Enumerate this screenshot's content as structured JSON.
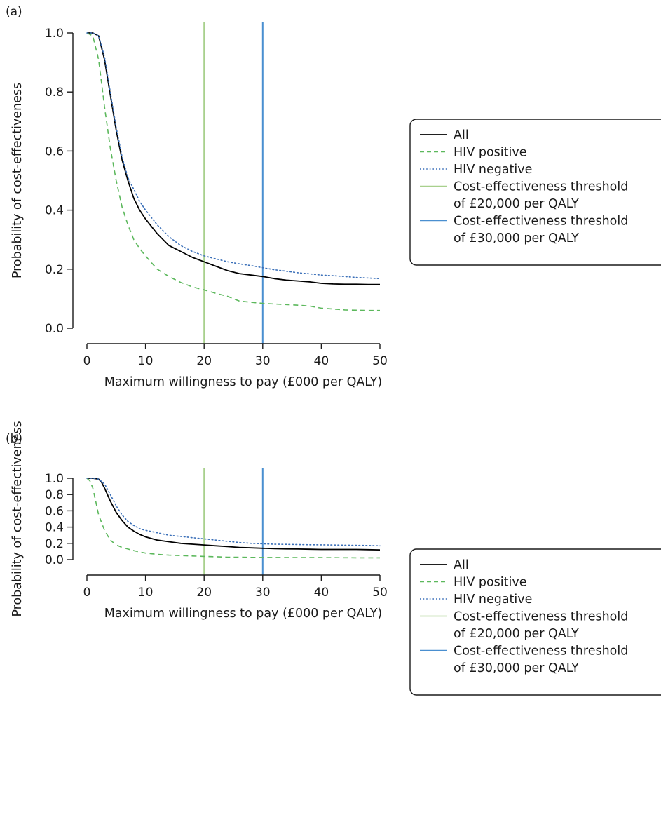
{
  "panels": [
    {
      "label": "(a)"
    },
    {
      "label": "(b)"
    }
  ],
  "colors": {
    "all": "#000000",
    "hiv_positive": "#5cb85c",
    "hiv_negative": "#3a6fb8",
    "threshold_20k": "#a8d08d",
    "threshold_30k": "#4a8fd0"
  },
  "chart_data": [
    {
      "type": "line",
      "panel": "(a)",
      "xlabel": "Maximum willingness to pay (£000 per QALY)",
      "ylabel": "Probability of cost-effectiveness",
      "xlim": [
        0,
        50
      ],
      "ylim": [
        0,
        1
      ],
      "xticks": [
        0,
        10,
        20,
        30,
        40,
        50
      ],
      "yticks": [
        "0.0",
        "0.2",
        "0.4",
        "0.6",
        "0.8",
        "1.0"
      ],
      "grid": false,
      "legend_position": "right",
      "legend": [
        {
          "key": "all",
          "label": "All",
          "style": "solid"
        },
        {
          "key": "hiv_positive",
          "label": "HIV positive",
          "style": "dashed"
        },
        {
          "key": "hiv_negative",
          "label": "HIV negative",
          "style": "dotted"
        },
        {
          "key": "threshold_20k",
          "label": "Cost-effectiveness threshold",
          "label2": "of £20,000 per QALY",
          "style": "solid"
        },
        {
          "key": "threshold_30k",
          "label": "Cost-effectiveness threshold",
          "label2": "of £30,000 per QALY",
          "style": "solid"
        }
      ],
      "vlines": [
        {
          "key": "threshold_20k",
          "x": 20
        },
        {
          "key": "threshold_30k",
          "x": 30
        }
      ],
      "series": [
        {
          "key": "all",
          "style": "solid",
          "x": [
            0,
            1,
            2,
            3,
            4,
            5,
            6,
            7,
            8,
            9,
            10,
            12,
            14,
            16,
            18,
            20,
            22,
            24,
            26,
            28,
            30,
            32,
            34,
            36,
            38,
            40,
            42,
            44,
            46,
            48,
            50
          ],
          "y": [
            1.0,
            1.0,
            0.99,
            0.91,
            0.79,
            0.67,
            0.57,
            0.5,
            0.44,
            0.4,
            0.37,
            0.32,
            0.28,
            0.26,
            0.24,
            0.225,
            0.21,
            0.195,
            0.185,
            0.18,
            0.175,
            0.168,
            0.163,
            0.16,
            0.157,
            0.152,
            0.15,
            0.149,
            0.149,
            0.148,
            0.148
          ]
        },
        {
          "key": "hiv_positive",
          "style": "dashed",
          "x": [
            0,
            1,
            2,
            3,
            4,
            5,
            6,
            7,
            8,
            9,
            10,
            12,
            14,
            16,
            18,
            20,
            22,
            24,
            26,
            28,
            30,
            32,
            34,
            36,
            38,
            40,
            42,
            44,
            46,
            48,
            50
          ],
          "y": [
            1.0,
            0.99,
            0.91,
            0.75,
            0.61,
            0.5,
            0.41,
            0.35,
            0.3,
            0.27,
            0.245,
            0.2,
            0.175,
            0.155,
            0.14,
            0.13,
            0.118,
            0.108,
            0.092,
            0.088,
            0.084,
            0.082,
            0.08,
            0.078,
            0.075,
            0.068,
            0.065,
            0.062,
            0.061,
            0.06,
            0.06
          ]
        },
        {
          "key": "hiv_negative",
          "style": "dotted",
          "x": [
            0,
            1,
            2,
            3,
            4,
            5,
            6,
            7,
            8,
            9,
            10,
            12,
            14,
            16,
            18,
            20,
            22,
            24,
            26,
            28,
            30,
            32,
            34,
            36,
            38,
            40,
            42,
            44,
            46,
            48,
            50
          ],
          "y": [
            1.0,
            1.0,
            0.99,
            0.92,
            0.8,
            0.68,
            0.58,
            0.51,
            0.47,
            0.43,
            0.4,
            0.35,
            0.31,
            0.28,
            0.26,
            0.245,
            0.235,
            0.225,
            0.218,
            0.212,
            0.205,
            0.198,
            0.193,
            0.188,
            0.184,
            0.18,
            0.178,
            0.175,
            0.172,
            0.17,
            0.168
          ]
        }
      ]
    },
    {
      "type": "line",
      "panel": "(b)",
      "xlabel": "Maximum willingness to pay (£000 per QALY)",
      "ylabel": "Probability of cost-effectiveness",
      "xlim": [
        0,
        50
      ],
      "ylim": [
        0,
        1
      ],
      "xticks": [
        0,
        10,
        20,
        30,
        40,
        50
      ],
      "yticks": [
        "0.0",
        "0.2",
        "0.4",
        "0.6",
        "0.8",
        "1.0"
      ],
      "grid": false,
      "legend_position": "right",
      "legend": [
        {
          "key": "all",
          "label": "All",
          "style": "solid"
        },
        {
          "key": "hiv_positive",
          "label": "HIV positive",
          "style": "dashed"
        },
        {
          "key": "hiv_negative",
          "label": "HIV negative",
          "style": "dotted"
        },
        {
          "key": "threshold_20k",
          "label": "Cost-effectiveness threshold",
          "label2": "of £20,000 per QALY",
          "style": "solid"
        },
        {
          "key": "threshold_30k",
          "label": "Cost-effectiveness threshold",
          "label2": "of £30,000 per QALY",
          "style": "solid"
        }
      ],
      "vlines": [
        {
          "key": "threshold_20k",
          "x": 20
        },
        {
          "key": "threshold_30k",
          "x": 30
        }
      ],
      "series": [
        {
          "key": "all",
          "style": "solid",
          "x": [
            0,
            1,
            2,
            2.5,
            3,
            4,
            5,
            6,
            7,
            8,
            9,
            10,
            12,
            14,
            16,
            18,
            20,
            22,
            24,
            26,
            28,
            30,
            32,
            34,
            36,
            38,
            40,
            42,
            44,
            46,
            48,
            50
          ],
          "y": [
            1.0,
            1.0,
            0.99,
            0.95,
            0.88,
            0.72,
            0.58,
            0.48,
            0.4,
            0.35,
            0.31,
            0.28,
            0.24,
            0.22,
            0.2,
            0.19,
            0.18,
            0.17,
            0.16,
            0.15,
            0.145,
            0.14,
            0.135,
            0.132,
            0.13,
            0.128,
            0.125,
            0.125,
            0.125,
            0.125,
            0.122,
            0.12
          ]
        },
        {
          "key": "hiv_positive",
          "style": "dashed",
          "x": [
            0,
            0.5,
            1,
            1.5,
            2,
            3,
            4,
            5,
            6,
            7,
            8,
            9,
            10,
            12,
            14,
            16,
            18,
            20,
            22,
            24,
            26,
            28,
            30,
            32,
            34,
            36,
            38,
            40,
            42,
            44,
            46,
            48,
            50
          ],
          "y": [
            1.0,
            0.97,
            0.88,
            0.72,
            0.55,
            0.36,
            0.24,
            0.18,
            0.15,
            0.13,
            0.11,
            0.095,
            0.08,
            0.065,
            0.055,
            0.05,
            0.045,
            0.04,
            0.035,
            0.03,
            0.03,
            0.028,
            0.027,
            0.027,
            0.026,
            0.026,
            0.025,
            0.025,
            0.024,
            0.023,
            0.022,
            0.022,
            0.022
          ]
        },
        {
          "key": "hiv_negative",
          "style": "dotted",
          "x": [
            0,
            1,
            2,
            3,
            4,
            5,
            6,
            7,
            8,
            9,
            10,
            12,
            14,
            16,
            18,
            20,
            22,
            24,
            26,
            28,
            30,
            32,
            34,
            36,
            38,
            40,
            42,
            44,
            46,
            48,
            50
          ],
          "y": [
            1.0,
            1.0,
            0.99,
            0.93,
            0.8,
            0.66,
            0.55,
            0.47,
            0.42,
            0.38,
            0.36,
            0.33,
            0.3,
            0.285,
            0.27,
            0.255,
            0.24,
            0.225,
            0.21,
            0.2,
            0.195,
            0.19,
            0.188,
            0.185,
            0.183,
            0.182,
            0.18,
            0.178,
            0.176,
            0.174,
            0.17
          ]
        }
      ]
    }
  ]
}
